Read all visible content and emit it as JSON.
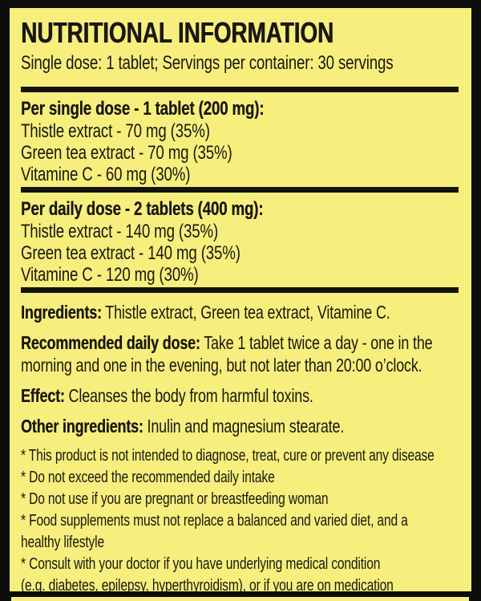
{
  "colors": {
    "background": "#0d0d0b",
    "panel_yellow": "#f7ef7d",
    "text_black": "#1a1712"
  },
  "label": {
    "title": "NUTRITIONAL INFORMATION",
    "subtitle": "Single dose: 1 tablet; Servings per container: 30 servings",
    "sections": [
      {
        "heading": "Per single dose - 1 tablet (200 mg):",
        "items": [
          "Thistle extract - 70 mg (35%)",
          "Green tea extract - 70 mg (35%)",
          "Vitamine C - 60 mg (30%)"
        ]
      },
      {
        "heading": "Per daily dose - 2 tablets (400 mg):",
        "items": [
          "Thistle extract - 140 mg (35%)",
          "Green tea extract - 140 mg (35%)",
          "Vitamine C - 120 mg (30%)"
        ]
      }
    ],
    "paragraphs": [
      {
        "label": "Ingredients:",
        "text": " Thistle extract, Green tea extract, Vitamine C."
      },
      {
        "label": "Recommended daily dose:",
        "text": " Take 1 tablet twice a day - one in the\nmorning and one in the evening, but not later than 20:00 o’clock."
      },
      {
        "label": "Effect:",
        "text": " Cleanses the body from harmful toxins."
      },
      {
        "label": "Other ingredients:",
        "text": " Inulin and magnesium stearate."
      }
    ],
    "disclaimers": [
      "* This product is not intended to diagnose, treat, cure or prevent any disease",
      "* Do not exceed the recommended daily intake",
      "* Do not use if you are pregnant or breastfeeding woman",
      "* Food supplements must not replace a balanced and varied diet, and a\nhealthy lifestyle",
      "* Consult with your doctor if you have underlying medical condition\n(e.g. diabetes, epilepsy, hyperthyroidism), or if you are on medication"
    ]
  }
}
